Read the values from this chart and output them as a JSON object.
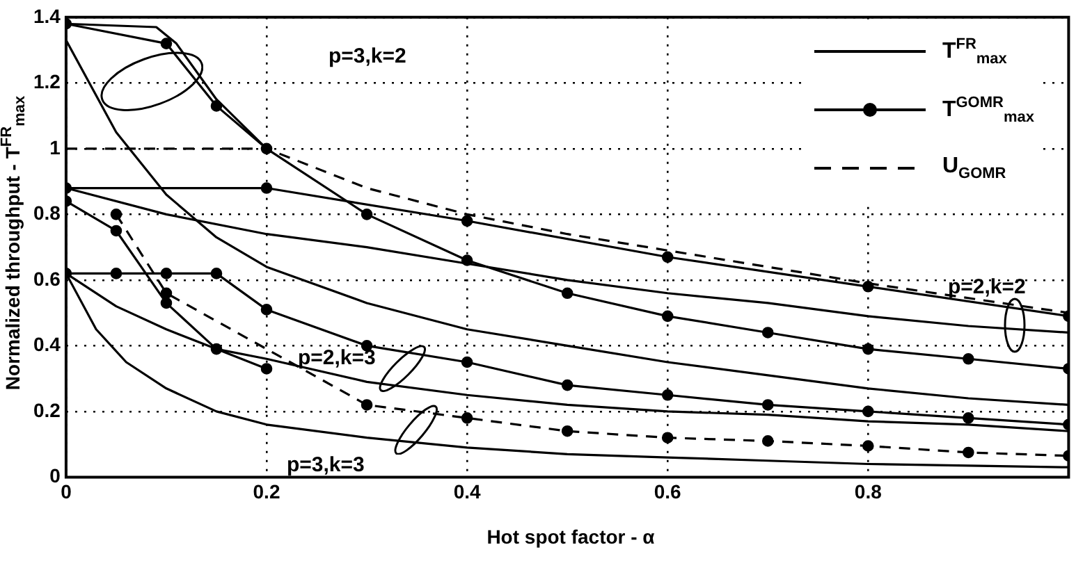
{
  "chart_data": {
    "type": "line",
    "xlabel": "Hot spot factor - α",
    "ylabel": "Normalized throughput - T$^{FR}$$_{max}$",
    "xlim": [
      0,
      1
    ],
    "xticks": [
      0,
      0.2,
      0.4,
      0.6,
      0.8
    ],
    "ylim": [
      0,
      1.4
    ],
    "yticks": [
      0,
      0.2,
      0.4,
      0.6,
      0.8,
      1,
      1.2,
      1.4
    ],
    "grid": true,
    "legend": "top right",
    "series": [
      {
        "name": "T$^{FR}$$_{max}$",
        "color": "#000000",
        "marker": "none",
        "line_style": "solid",
        "x": [
          0,
          0.09,
          0.11,
          0.15,
          0.2
        ],
        "values": [
          1.38,
          1.37,
          1.32,
          1.15,
          1.0
        ]
      },
      {
        "color": "#000000",
        "marker": "none",
        "line_style": "solid",
        "x": [
          0,
          0.05,
          0.1,
          0.15,
          0.2,
          0.3,
          0.4,
          0.5,
          0.6,
          0.7,
          0.8,
          0.9,
          1.0
        ],
        "values": [
          1.33,
          1.05,
          0.86,
          0.73,
          0.64,
          0.53,
          0.45,
          0.4,
          0.35,
          0.31,
          0.27,
          0.24,
          0.22
        ]
      },
      {
        "color": "#000000",
        "marker": "none",
        "line_style": "solid",
        "x": [
          0,
          0.1,
          0.2,
          0.3,
          0.4,
          0.5,
          0.6,
          0.7,
          0.8,
          0.9,
          1.0
        ],
        "values": [
          0.88,
          0.8,
          0.74,
          0.7,
          0.65,
          0.6,
          0.56,
          0.53,
          0.49,
          0.46,
          0.44
        ]
      },
      {
        "color": "#000000",
        "marker": "none",
        "line_style": "solid",
        "x": [
          0,
          0.05,
          0.1,
          0.15,
          0.2,
          0.3,
          0.4,
          0.5,
          0.6,
          0.7,
          0.8,
          0.9,
          1.0
        ],
        "values": [
          0.62,
          0.52,
          0.45,
          0.39,
          0.36,
          0.29,
          0.25,
          0.22,
          0.2,
          0.19,
          0.17,
          0.16,
          0.14
        ]
      },
      {
        "color": "#000000",
        "marker": "none",
        "line_style": "solid",
        "x": [
          0,
          0.03,
          0.06,
          0.1,
          0.15,
          0.2,
          0.3,
          0.4,
          0.5,
          0.6,
          0.7,
          0.8,
          0.9,
          1.0
        ],
        "values": [
          0.62,
          0.45,
          0.35,
          0.27,
          0.2,
          0.16,
          0.12,
          0.09,
          0.07,
          0.06,
          0.05,
          0.04,
          0.035,
          0.03
        ]
      },
      {
        "name": "T$^{GOMR}$$_{max}$",
        "color": "#000000",
        "marker": "circle",
        "line_style": "solid",
        "x": [
          0,
          0.1,
          0.15,
          0.2,
          0.3,
          0.4,
          0.5,
          0.6,
          0.7,
          0.8,
          0.9,
          1.0
        ],
        "values": [
          1.38,
          1.32,
          1.13,
          1.0,
          0.8,
          0.66,
          0.56,
          0.49,
          0.44,
          0.39,
          0.36,
          0.33
        ]
      },
      {
        "color": "#000000",
        "marker": "circle",
        "line_style": "solid",
        "x": [
          0,
          0.2,
          0.4,
          0.6,
          0.8,
          1.0
        ],
        "values": [
          0.88,
          0.88,
          0.78,
          0.67,
          0.58,
          0.49
        ]
      },
      {
        "color": "#000000",
        "marker": "circle",
        "line_style": "solid",
        "x": [
          0,
          0.05,
          0.1,
          0.15,
          0.2,
          0.3,
          0.4,
          0.5,
          0.6,
          0.7,
          0.8,
          0.9,
          1.0
        ],
        "values": [
          0.62,
          0.62,
          0.62,
          0.62,
          0.51,
          0.4,
          0.35,
          0.28,
          0.25,
          0.22,
          0.2,
          0.18,
          0.16
        ]
      },
      {
        "color": "#000000",
        "marker": "circle",
        "line_style": "solid",
        "x": [
          0,
          0.05,
          0.1,
          0.15,
          0.2
        ],
        "values": [
          0.84,
          0.75,
          0.53,
          0.39,
          0.33
        ]
      },
      {
        "name": "U$_{GOMR}$",
        "color": "#000000",
        "marker": "none",
        "line_style": "dashed",
        "x": [
          0,
          0.2,
          0.3,
          0.4,
          0.5,
          0.6,
          0.8,
          1.0
        ],
        "values": [
          1.0,
          1.0,
          0.88,
          0.8,
          0.74,
          0.69,
          0.59,
          0.5
        ]
      },
      {
        "color": "#000000",
        "marker": "circle",
        "line_style": "dashed",
        "x": [
          0.05,
          0.1,
          0.3,
          0.4,
          0.5,
          0.6,
          0.7,
          0.8,
          0.9,
          1.0
        ],
        "values": [
          0.8,
          0.56,
          0.22,
          0.18,
          0.14,
          0.12,
          0.11,
          0.095,
          0.075,
          0.065
        ]
      }
    ],
    "annotations": [
      "p=3,k=2",
      "p=2,k=2",
      "p=2,k=3",
      "p=3,k=3"
    ]
  }
}
